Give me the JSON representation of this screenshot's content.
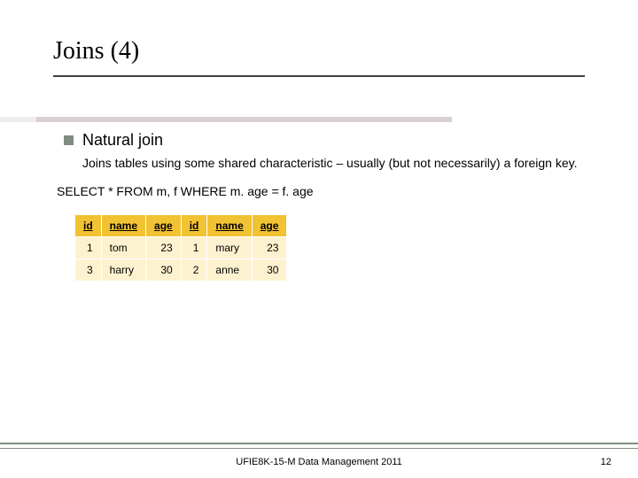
{
  "title": "Joins (4)",
  "bullet": {
    "label": "Natural join"
  },
  "desc": "Joins tables using some shared characteristic – usually (but not necessarily) a foreign key.",
  "sql": "SELECT * FROM m, f WHERE m. age = f. age",
  "table": {
    "type": "table",
    "header_bg": "#f1c232",
    "row_bg": "#fdf2d0",
    "border_color": "#ffffff",
    "font_size": 12,
    "columns": [
      {
        "key": "id1",
        "label": "id",
        "align": "right"
      },
      {
        "key": "name1",
        "label": "name",
        "align": "left"
      },
      {
        "key": "age1",
        "label": "age",
        "align": "right"
      },
      {
        "key": "id2",
        "label": "id",
        "align": "right"
      },
      {
        "key": "name2",
        "label": "name",
        "align": "left"
      },
      {
        "key": "age2",
        "label": "age",
        "align": "right"
      }
    ],
    "rows": [
      {
        "id1": "1",
        "name1": "tom",
        "age1": "23",
        "id2": "1",
        "name2": "mary",
        "age2": "23"
      },
      {
        "id1": "3",
        "name1": "harry",
        "age1": "30",
        "id2": "2",
        "name2": "anne",
        "age2": "30"
      }
    ]
  },
  "footer": "UFIE8K-15-M Data Management 2011",
  "page_number": "12",
  "colors": {
    "bullet_square": "#808c80",
    "underline": "#404040",
    "footer_line": "#808c80",
    "background": "#ffffff"
  }
}
